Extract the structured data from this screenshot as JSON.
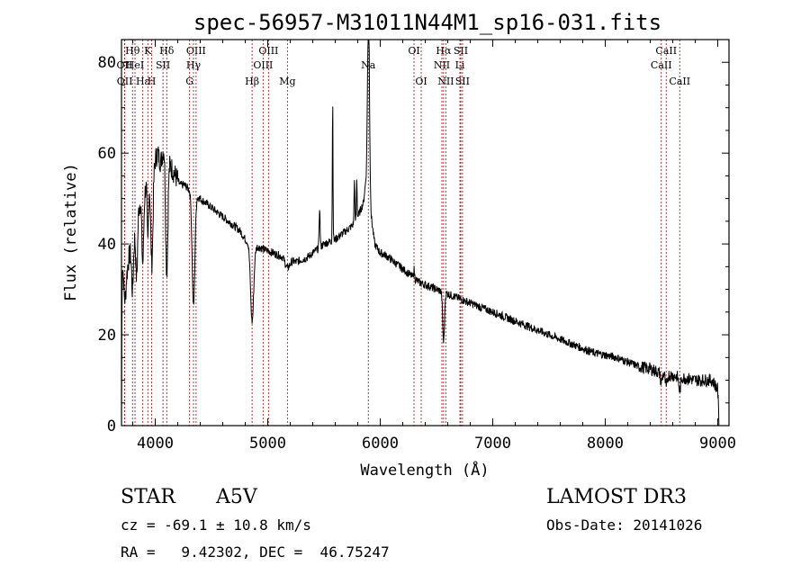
{
  "chart_data": {
    "type": "line",
    "title": "spec-56957-M31011N44M1_sp16-031.fits",
    "xlabel": "Wavelength (Å)",
    "ylabel": "Flux (relative)",
    "xlim": [
      3700,
      9100
    ],
    "ylim": [
      0,
      85
    ],
    "xticks": [
      4000,
      5000,
      6000,
      7000,
      8000,
      9000
    ],
    "yticks": [
      0,
      20,
      40,
      60,
      80
    ],
    "continuum": [
      [
        3700,
        0
      ],
      [
        3705,
        36
      ],
      [
        3730,
        38
      ],
      [
        3750,
        35
      ],
      [
        3775,
        38
      ],
      [
        3800,
        40
      ],
      [
        3825,
        44
      ],
      [
        3850,
        48
      ],
      [
        3875,
        50
      ],
      [
        3900,
        51
      ],
      [
        3930,
        54
      ],
      [
        3960,
        55
      ],
      [
        3990,
        58
      ],
      [
        4020,
        60
      ],
      [
        4050,
        58
      ],
      [
        4080,
        62
      ],
      [
        4100,
        60
      ],
      [
        4140,
        57
      ],
      [
        4180,
        55
      ],
      [
        4220,
        53
      ],
      [
        4260,
        53
      ],
      [
        4300,
        52
      ],
      [
        4350,
        51
      ],
      [
        4400,
        50
      ],
      [
        4450,
        49
      ],
      [
        4500,
        48
      ],
      [
        4550,
        47
      ],
      [
        4600,
        46
      ],
      [
        4650,
        45
      ],
      [
        4700,
        44
      ],
      [
        4750,
        43
      ],
      [
        4800,
        41
      ],
      [
        4850,
        40
      ],
      [
        4900,
        39.5
      ],
      [
        4950,
        39
      ],
      [
        5000,
        38.5
      ],
      [
        5050,
        38
      ],
      [
        5100,
        37.5
      ],
      [
        5150,
        37
      ],
      [
        5200,
        36.5
      ],
      [
        5250,
        36
      ],
      [
        5300,
        36.5
      ],
      [
        5350,
        37
      ],
      [
        5400,
        38
      ],
      [
        5450,
        39
      ],
      [
        5500,
        40
      ],
      [
        5550,
        40.5
      ],
      [
        5600,
        41
      ],
      [
        5650,
        42
      ],
      [
        5700,
        43
      ],
      [
        5750,
        44
      ],
      [
        5800,
        46
      ],
      [
        5850,
        49
      ],
      [
        5880,
        56
      ],
      [
        5900,
        65
      ],
      [
        5920,
        46
      ],
      [
        5950,
        40
      ],
      [
        6000,
        38
      ],
      [
        6050,
        37.5
      ],
      [
        6100,
        36.5
      ],
      [
        6150,
        35.5
      ],
      [
        6200,
        34.5
      ],
      [
        6250,
        33.5
      ],
      [
        6300,
        32.5
      ],
      [
        6350,
        31.5
      ],
      [
        6400,
        31
      ],
      [
        6450,
        30.5
      ],
      [
        6500,
        30
      ],
      [
        6550,
        29.5
      ],
      [
        6600,
        29
      ],
      [
        6650,
        28.5
      ],
      [
        6700,
        28
      ],
      [
        6800,
        27
      ],
      [
        6900,
        26
      ],
      [
        7000,
        25
      ],
      [
        7100,
        24
      ],
      [
        7200,
        23
      ],
      [
        7300,
        22
      ],
      [
        7400,
        21
      ],
      [
        7500,
        20
      ],
      [
        7600,
        19
      ],
      [
        7700,
        18
      ],
      [
        7800,
        17
      ],
      [
        7900,
        16
      ],
      [
        8000,
        15.5
      ],
      [
        8100,
        15
      ],
      [
        8200,
        14
      ],
      [
        8300,
        13
      ],
      [
        8400,
        12.5
      ],
      [
        8500,
        11.5
      ],
      [
        8600,
        11
      ],
      [
        8700,
        10.5
      ],
      [
        8800,
        10
      ],
      [
        8900,
        10
      ],
      [
        8950,
        10
      ],
      [
        9000,
        8
      ],
      [
        9010,
        1
      ]
    ],
    "features": [
      {
        "center": 3730,
        "depth": 10,
        "width": 10
      },
      {
        "center": 3798,
        "depth": 10,
        "width": 8
      },
      {
        "center": 3835,
        "depth": 13,
        "width": 8
      },
      {
        "center": 3889,
        "depth": 15,
        "width": 8
      },
      {
        "center": 3934,
        "depth": 14,
        "width": 6
      },
      {
        "center": 3970,
        "depth": 20,
        "width": 10
      },
      {
        "center": 4102,
        "depth": 26,
        "width": 10
      },
      {
        "center": 4340,
        "depth": 25,
        "width": 12
      },
      {
        "center": 4861,
        "depth": 17,
        "width": 14
      },
      {
        "center": 5175,
        "depth": 2,
        "width": 20
      },
      {
        "center": 5461,
        "depth": -9,
        "width": 4
      },
      {
        "center": 5577,
        "depth": -31,
        "width": 3
      },
      {
        "center": 5770,
        "depth": -10,
        "width": 3
      },
      {
        "center": 5791,
        "depth": -9,
        "width": 3
      },
      {
        "center": 5890,
        "depth": -20,
        "width": 6
      },
      {
        "center": 5900,
        "depth": -18,
        "width": 5
      },
      {
        "center": 6300,
        "depth": -2,
        "width": 4
      },
      {
        "center": 6563,
        "depth": 11,
        "width": 8
      },
      {
        "center": 8498,
        "depth": 2,
        "width": 8
      },
      {
        "center": 8542,
        "depth": 3,
        "width": 8
      },
      {
        "center": 8662,
        "depth": 3,
        "width": 8
      }
    ],
    "line_markers": [
      {
        "label": "Hθ",
        "wavelength": 3798,
        "row": 1
      },
      {
        "label": "OII",
        "wavelength": 3727,
        "row": 2
      },
      {
        "label": "OII",
        "wavelength": 3729,
        "row": 3
      },
      {
        "label": "Hε",
        "wavelength": 3889,
        "row": 3
      },
      {
        "label": "HeI",
        "wavelength": 3820,
        "row": 2
      },
      {
        "label": "K",
        "wavelength": 3934,
        "row": 1
      },
      {
        "label": "SII",
        "wavelength": 4069,
        "row": 2
      },
      {
        "label": "H",
        "wavelength": 3968,
        "row": 3
      },
      {
        "label": "Hδ",
        "wavelength": 4102,
        "row": 1
      },
      {
        "label": "OIII",
        "wavelength": 4363,
        "row": 1
      },
      {
        "label": "Hγ",
        "wavelength": 4340,
        "row": 2
      },
      {
        "label": "G",
        "wavelength": 4305,
        "row": 3
      },
      {
        "label": "Hβ",
        "wavelength": 4861,
        "row": 3
      },
      {
        "label": "OIII",
        "wavelength": 5007,
        "row": 1
      },
      {
        "label": "OIII",
        "wavelength": 4959,
        "row": 2
      },
      {
        "label": "Mg",
        "wavelength": 5175,
        "row": 3
      },
      {
        "label": "Na",
        "wavelength": 5894,
        "row": 2
      },
      {
        "label": "OI",
        "wavelength": 6300,
        "row": 1
      },
      {
        "label": "OI",
        "wavelength": 6364,
        "row": 3
      },
      {
        "label": "Hα",
        "wavelength": 6563,
        "row": 1
      },
      {
        "label": "NII",
        "wavelength": 6548,
        "row": 2
      },
      {
        "label": "NII",
        "wavelength": 6583,
        "row": 3
      },
      {
        "label": "SII",
        "wavelength": 6716,
        "row": 1
      },
      {
        "label": "Li",
        "wavelength": 6708,
        "row": 2
      },
      {
        "label": "SII",
        "wavelength": 6731,
        "row": 3
      },
      {
        "label": "CaII",
        "wavelength": 8542,
        "row": 1
      },
      {
        "label": "CaII",
        "wavelength": 8498,
        "row": 2
      },
      {
        "label": "CaII",
        "wavelength": 8662,
        "row": 3
      }
    ],
    "colors": {
      "spectrum": "#000000",
      "markers": "#b22222",
      "axes": "#000000"
    }
  },
  "info": {
    "class": "STAR",
    "subclass": "A5V",
    "survey": "LAMOST DR3",
    "cz": "cz = -69.1 ± 10.8 km/s",
    "obs_date": "Obs-Date: 20141026",
    "coords": "RA =   9.42302, DEC =  46.75247"
  }
}
